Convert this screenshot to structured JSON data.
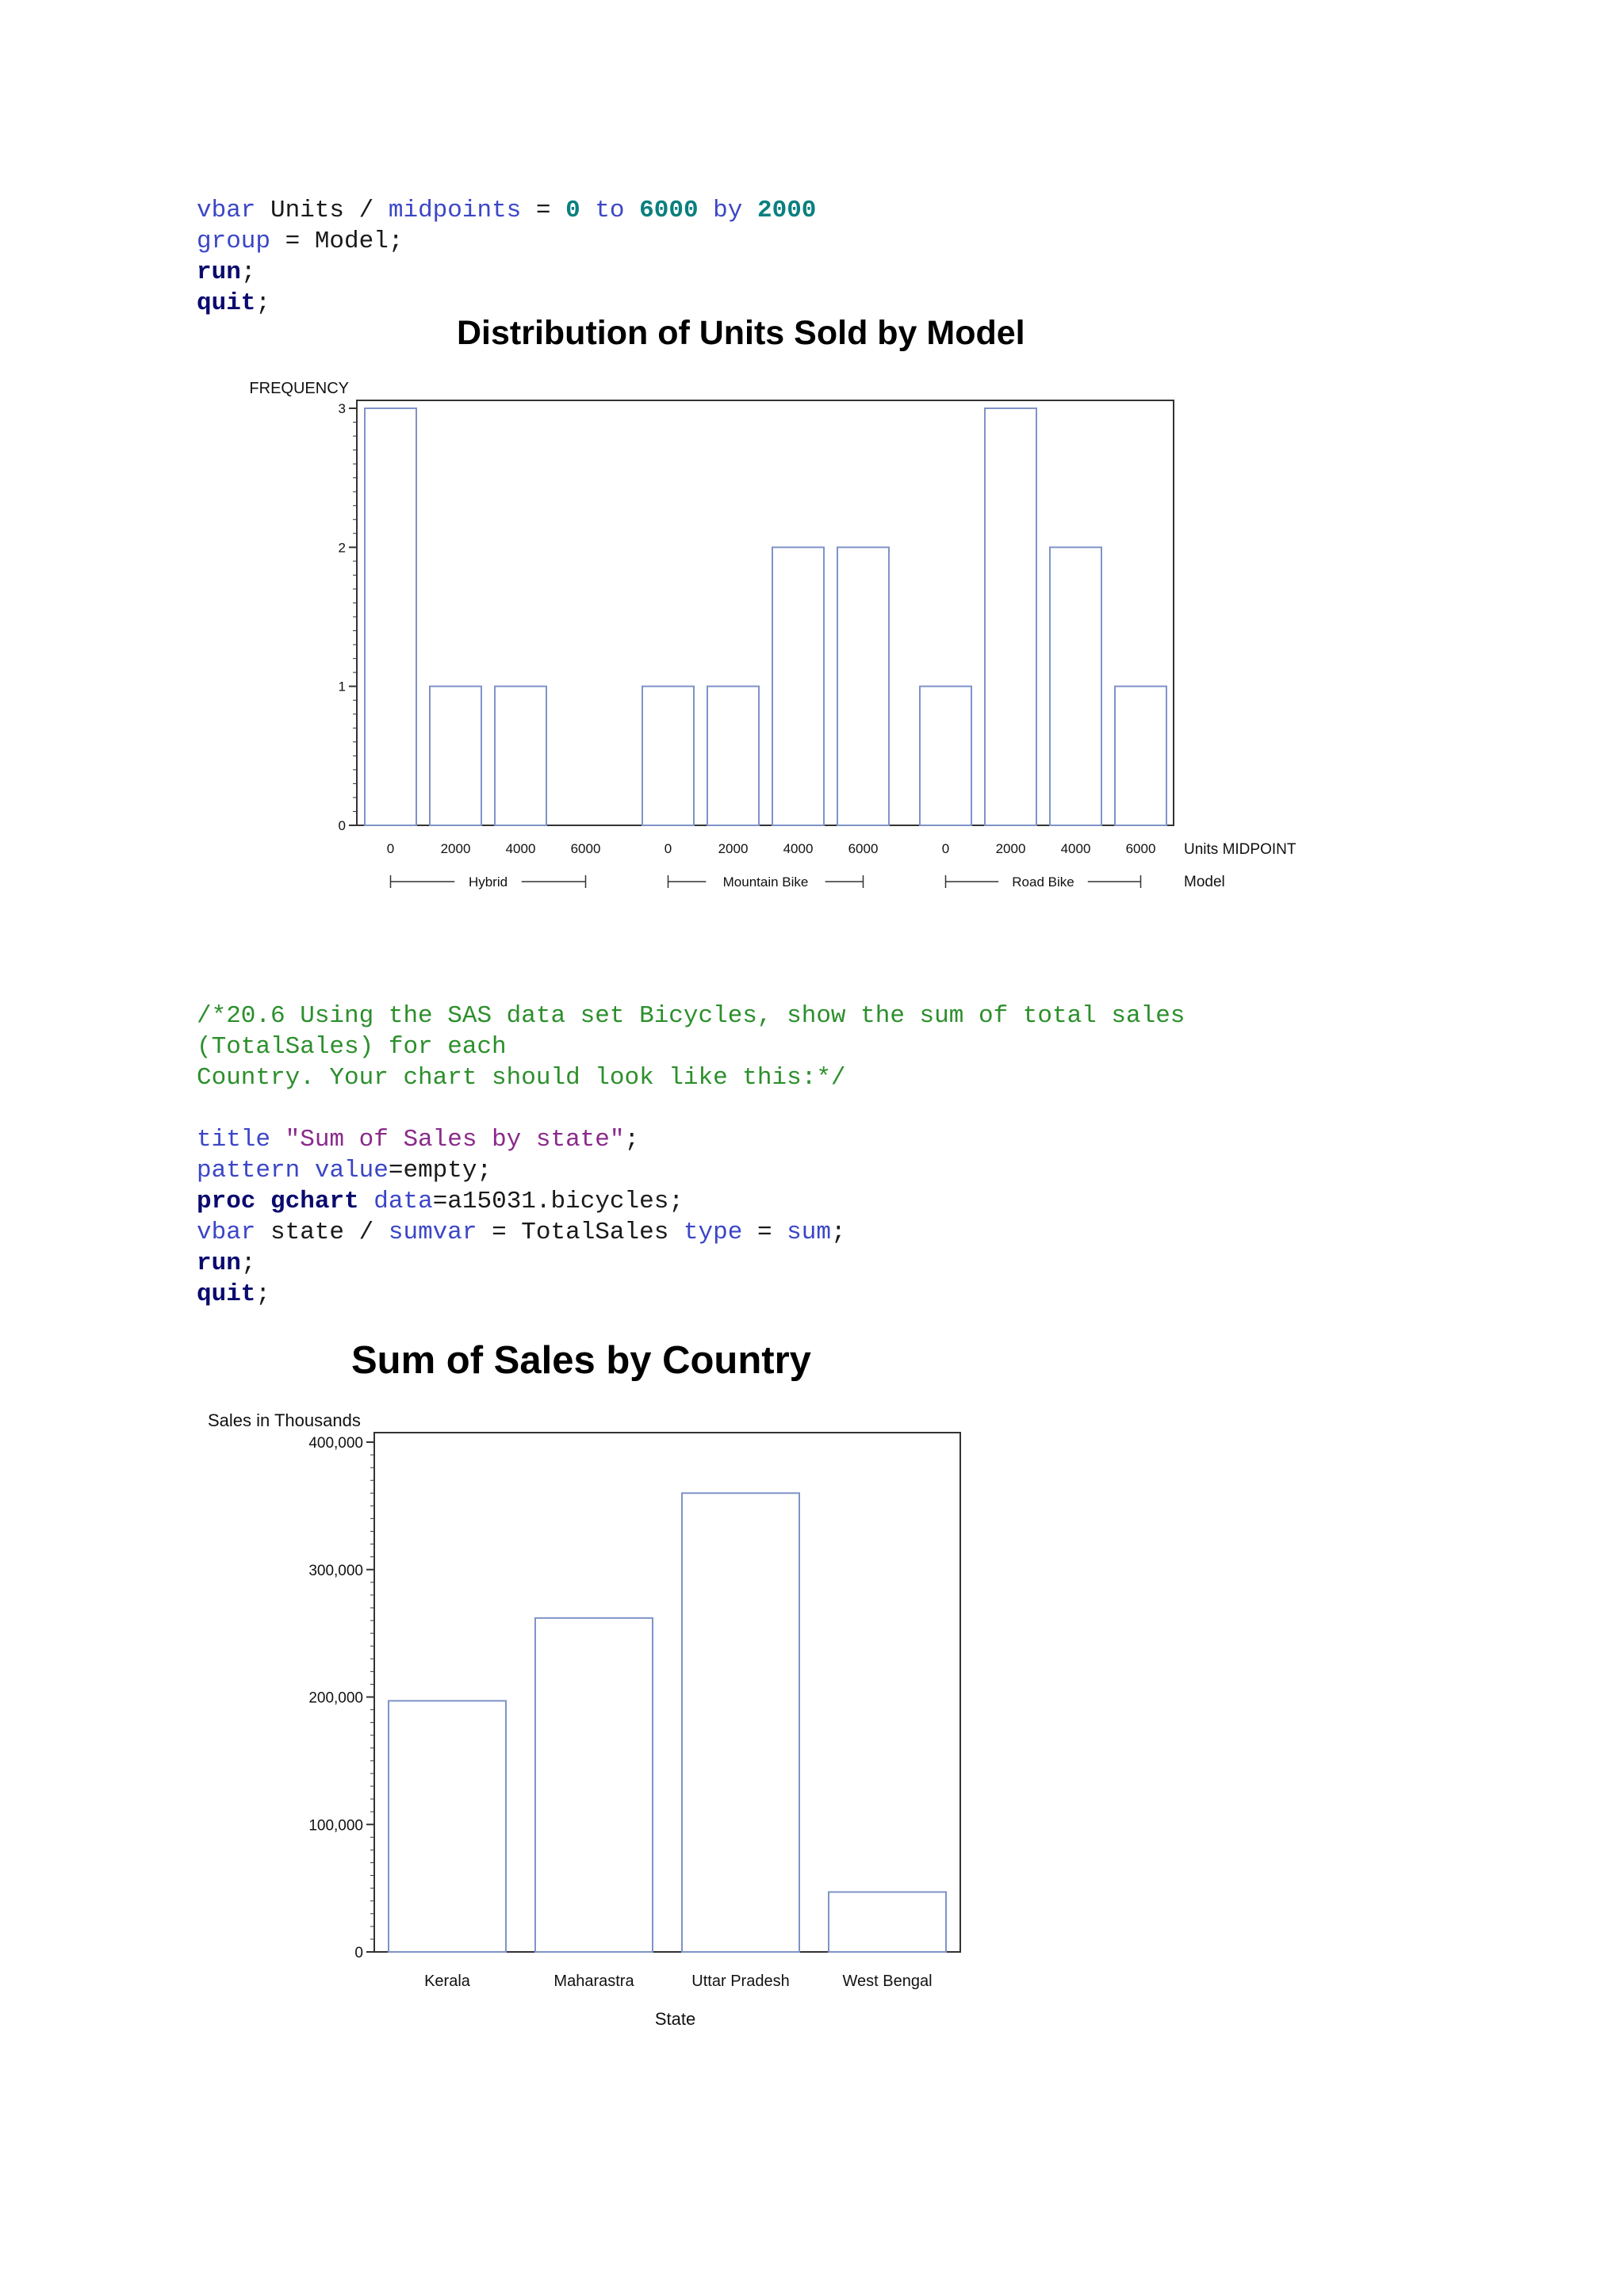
{
  "code_block_1": {
    "line1": {
      "a": "vbar",
      "b": " Units / ",
      "c": "midpoints",
      "d": " = ",
      "e": "0",
      "f": " to ",
      "g": "6000",
      "h": " by ",
      "i": "2000"
    },
    "line2": {
      "a": "group",
      "b": " = Model;"
    },
    "line3": {
      "a": "run",
      "b": ";"
    },
    "line4": {
      "a": "quit",
      "b": ";"
    }
  },
  "chart1": {
    "title": "Distribution of Units Sold by Model",
    "ylabel": "FREQUENCY",
    "xlabel": "Units MIDPOINT",
    "group_label": "Model"
  },
  "comment": {
    "line1": "/*20.6 Using the SAS data set Bicycles, show the sum of total sales",
    "line2": "(TotalSales) for each",
    "line3": "Country. Your chart should look like this:*/"
  },
  "code_block_2": {
    "line1": {
      "a": "title",
      "b": " ",
      "c": "\"Sum of Sales by state\"",
      "d": ";"
    },
    "line2": {
      "a": "pattern",
      "b": " ",
      "c": "value",
      "d": "=empty;"
    },
    "line3": {
      "a": "proc",
      "b": " ",
      "c": "gchart",
      "d": " ",
      "e": "data",
      "f": "=a15031.bicycles;"
    },
    "line4": {
      "a": "vbar",
      "b": " state / ",
      "c": "sumvar",
      "d": " = TotalSales ",
      "e": "type",
      "f": " = ",
      "g": "sum",
      "h": ";"
    },
    "line5": {
      "a": "run",
      "b": ";"
    },
    "line6": {
      "a": "quit",
      "b": ";"
    }
  },
  "chart2": {
    "title": "Sum of Sales by Country",
    "ylabel": "Sales in Thousands",
    "xlabel": "State"
  },
  "colors": {
    "bar_stroke": "#7f93c8",
    "frame": "#333333"
  },
  "chart_data": [
    {
      "type": "bar",
      "title": "Distribution of Units Sold by Model",
      "ylabel": "FREQUENCY",
      "xlabel": "Units MIDPOINT",
      "group_label": "Model",
      "ylim": [
        0,
        3
      ],
      "yticks": [
        "0",
        "1",
        "2",
        "3"
      ],
      "midpoints": [
        "0",
        "2000",
        "4000",
        "6000"
      ],
      "groups": [
        {
          "name": "Hybrid",
          "values": [
            3,
            1,
            1,
            0
          ]
        },
        {
          "name": "Mountain Bike",
          "values": [
            1,
            1,
            2,
            2
          ]
        },
        {
          "name": "Road Bike",
          "values": [
            1,
            3,
            2,
            1
          ]
        }
      ]
    },
    {
      "type": "bar",
      "title": "Sum of Sales by Country",
      "ylabel": "Sales in Thousands",
      "xlabel": "State",
      "ylim": [
        0,
        400000
      ],
      "yticks": [
        "0",
        "100,000",
        "200,000",
        "300,000",
        "400,000"
      ],
      "categories": [
        "Kerala",
        "Maharastra",
        "Uttar Pradesh",
        "West Bengal"
      ],
      "values": [
        197000,
        262000,
        360000,
        47000
      ]
    }
  ]
}
